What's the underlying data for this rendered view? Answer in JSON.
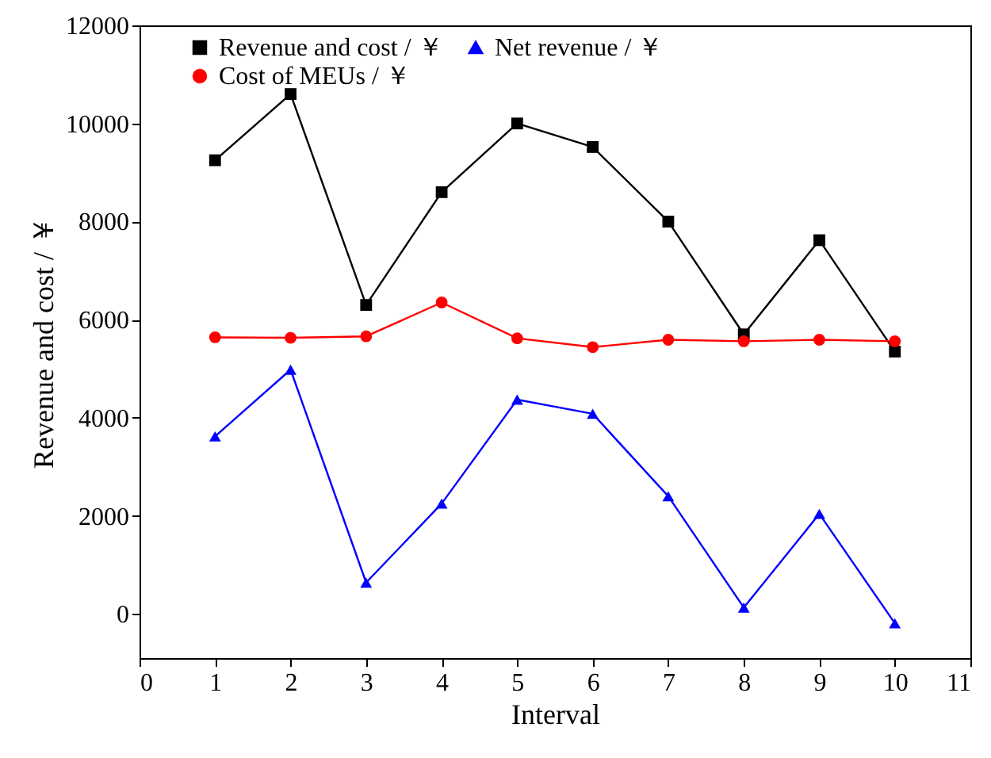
{
  "chart_data": {
    "type": "line",
    "xlabel": "Interval",
    "ylabel": "Revenue and cost / ￥",
    "x": [
      1,
      2,
      3,
      4,
      5,
      6,
      7,
      8,
      9,
      10
    ],
    "series": [
      {
        "name": "Revenue and cost / ￥",
        "color": "#000000",
        "marker": "square",
        "values": [
          9250,
          10600,
          6300,
          8600,
          10000,
          9520,
          8000,
          5700,
          7620,
          5350
        ]
      },
      {
        "name": "Cost of MEUs / ￥",
        "color": "#ff0000",
        "marker": "circle",
        "values": [
          5640,
          5630,
          5660,
          6350,
          5620,
          5440,
          5590,
          5560,
          5590,
          5560
        ]
      },
      {
        "name": "Net revenue / ￥",
        "color": "#0000ff",
        "marker": "triangle",
        "values": [
          3620,
          4980,
          640,
          2250,
          4370,
          4080,
          2400,
          130,
          2040,
          -190
        ]
      }
    ],
    "xlim": [
      0,
      11
    ],
    "xticks": [
      0,
      1,
      2,
      3,
      4,
      5,
      6,
      7,
      8,
      9,
      10,
      11
    ],
    "ylim": [
      -900,
      12000
    ],
    "yticks": [
      0,
      2000,
      4000,
      6000,
      8000,
      10000,
      12000
    ],
    "grid": false,
    "legend": "top",
    "line_style": "solid"
  }
}
